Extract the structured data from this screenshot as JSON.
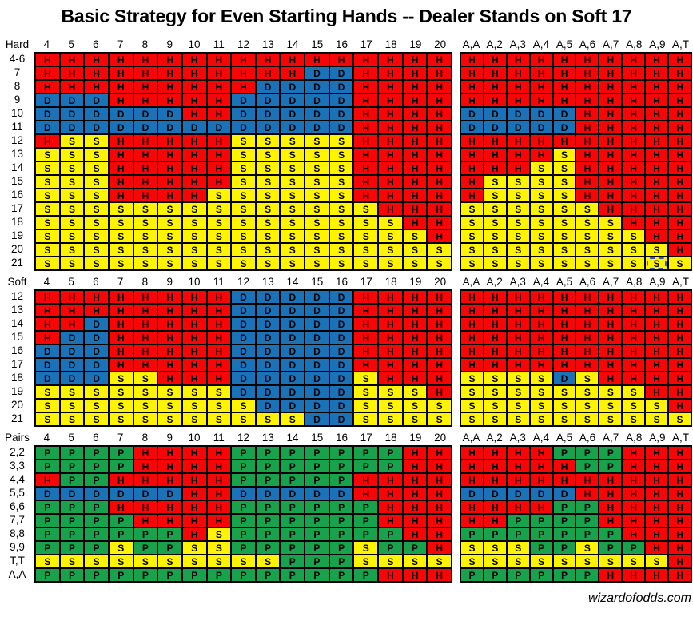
{
  "title": "Basic Strategy for Even Starting Hands -- Dealer Stands on Soft 17",
  "watermark": "wizardofodds.com",
  "chart_data": {
    "type": "table",
    "description": "Blackjack basic strategy grid; letters are actions per player hand (rows) vs dealer/other-hand column. H=red, S=yellow, D=blue, P=green.",
    "left_columns": [
      "4",
      "5",
      "6",
      "7",
      "8",
      "9",
      "10",
      "11",
      "12",
      "13",
      "14",
      "15",
      "16",
      "17",
      "18",
      "19",
      "20"
    ],
    "right_columns": [
      "A,A",
      "A,2",
      "A,3",
      "A,4",
      "A,5",
      "A,6",
      "A,7",
      "A,8",
      "A,9",
      "A,T"
    ],
    "action_colors": {
      "H": "#f90505",
      "S": "#fef400",
      "D": "#1a72b9",
      "P": "#17a24b"
    },
    "text_color": "#000000",
    "highlight": {
      "section": "Hard",
      "row": "21",
      "column": "A,9",
      "style": "dashed-blue-outline"
    },
    "sections": [
      {
        "label": "Hard",
        "rows": [
          {
            "label": "4-6",
            "left": "HHHHHHHHHHHHHHHHH",
            "right": "HHHHHHHHHH"
          },
          {
            "label": "7",
            "left": "HHHHHHHHHHHDDHHHH",
            "right": "HHHHHHHHHH"
          },
          {
            "label": "8",
            "left": "HHHHHHHHHDDDDHHHH",
            "right": "HHHHHHHHHH"
          },
          {
            "label": "9",
            "left": "DDDHHHHHDDDDDHHHH",
            "right": "HHHHHHHHHH"
          },
          {
            "label": "10",
            "left": "DDDDDDHHDDDDDHHHH",
            "right": "DDDDDHHHHH"
          },
          {
            "label": "11",
            "left": "DDDDDDDDDDDDDHHHH",
            "right": "DDDDDHHHHH"
          },
          {
            "label": "12",
            "left": "HSSHHHHHSSSSSHHHH",
            "right": "HHHHHHHHHH"
          },
          {
            "label": "13",
            "left": "SSSHHHHHSSSSSHHHH",
            "right": "HHHHSHHHHH"
          },
          {
            "label": "14",
            "left": "SSSHHHHHSSSSSHHHH",
            "right": "HHHSSHHHHH"
          },
          {
            "label": "15",
            "left": "SSSHHHHHSSSSSHHHH",
            "right": "HSSSSHHHHH"
          },
          {
            "label": "16",
            "left": "SSSHHHHSSSSSSHHHH",
            "right": "HSSSSHHHHH"
          },
          {
            "label": "17",
            "left": "SSSSSSSSSSSSSSHHH",
            "right": "SSSSSSHHHH"
          },
          {
            "label": "18",
            "left": "SSSSSSSSSSSSSSSHH",
            "right": "SSSSSSSHHH"
          },
          {
            "label": "19",
            "left": "SSSSSSSSSSSSSSSSH",
            "right": "SSSSSSSSHH"
          },
          {
            "label": "20",
            "left": "SSSSSSSSSSSSSSSSS",
            "right": "SSSSSSSSSH"
          },
          {
            "label": "21",
            "left": "SSSSSSSSSSSSSSSSS",
            "right": "SSSSSSSSSS"
          }
        ]
      },
      {
        "label": "Soft",
        "rows": [
          {
            "label": "12",
            "left": "HHHHHHHHDDDDDHHHH",
            "right": "HHHHHHHHHH"
          },
          {
            "label": "13",
            "left": "HHHHHHHHDDDDDHHHH",
            "right": "HHHHHHHHHH"
          },
          {
            "label": "14",
            "left": "HHDHHHHHDDDDDHHHH",
            "right": "HHHHHHHHHH"
          },
          {
            "label": "15",
            "left": "HDDHHHHHDDDDDHHHH",
            "right": "HHHHHHHHHH"
          },
          {
            "label": "16",
            "left": "DDDHHHHHDDDDDHHHH",
            "right": "HHHHHHHHHH"
          },
          {
            "label": "17",
            "left": "DDDHHHHHDDDDDHHHH",
            "right": "HHHHHHHHHH"
          },
          {
            "label": "18",
            "left": "DDDSSHHHDDDDDSHHH",
            "right": "SSSSDSHHHH"
          },
          {
            "label": "19",
            "left": "SSSSSSSSDDDDDSSSH",
            "right": "SSSSSSSSHH"
          },
          {
            "label": "20",
            "left": "SSSSSSSSSDDDDSSSS",
            "right": "SSSSSSSSSH"
          },
          {
            "label": "21",
            "left": "SSSSSSSSSSSDDSSSS",
            "right": "SSSSSSSSSS"
          }
        ]
      },
      {
        "label": "Pairs",
        "rows": [
          {
            "label": "2,2",
            "left": "PPPPHHHHPPPPPPPHH",
            "right": "HHHHPPPHHH"
          },
          {
            "label": "3,3",
            "left": "PPPPHHHHPPPPPPPHH",
            "right": "HHHHHPPHHH"
          },
          {
            "label": "4,4",
            "left": "HPPHHHHHPPPPPHHHH",
            "right": "HHHHHHHHHH"
          },
          {
            "label": "5,5",
            "left": "DDDDDDHHDDDDDHHHH",
            "right": "DDDDDHHHHH"
          },
          {
            "label": "6,6",
            "left": "PPPHHHHHPPPPPPHHH",
            "right": "HHHHPPHHHH"
          },
          {
            "label": "7,7",
            "left": "PPPPHHHHPPPPPPHHH",
            "right": "HHPPPPHHHH"
          },
          {
            "label": "8,8",
            "left": "PPPPPPHSPPPPPPPHH",
            "right": "PPPPPPPHHH"
          },
          {
            "label": "9,9",
            "left": "PPPSPPSSPPPPPSPPH",
            "right": "SSSPPSPPHH"
          },
          {
            "label": "T,T",
            "left": "SSSSSSSSSSPPPSSSS",
            "right": "SSSSSSSSSH"
          },
          {
            "label": "A,A",
            "left": "PPPPPPPPPPPPPPHHH",
            "right": "PPPPPPHHHH"
          }
        ]
      }
    ]
  }
}
